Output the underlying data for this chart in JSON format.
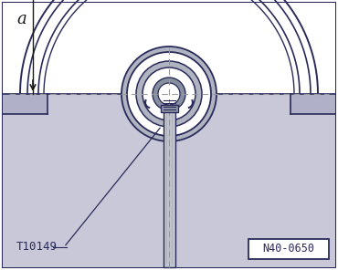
{
  "bg_color": "#ffffff",
  "border_color": "#2a2a5a",
  "line_color": "#2a2a5a",
  "dim_color": "#1a1a1a",
  "dash_color": "#999999",
  "fill_bottom": "#c8c8d8",
  "fill_shelf": "#b0b0c8",
  "label_t10149": "T10149",
  "label_n40": "N40-0650",
  "label_a": "a",
  "fig_width": 3.7,
  "fig_height": 2.96,
  "dpi": 100
}
